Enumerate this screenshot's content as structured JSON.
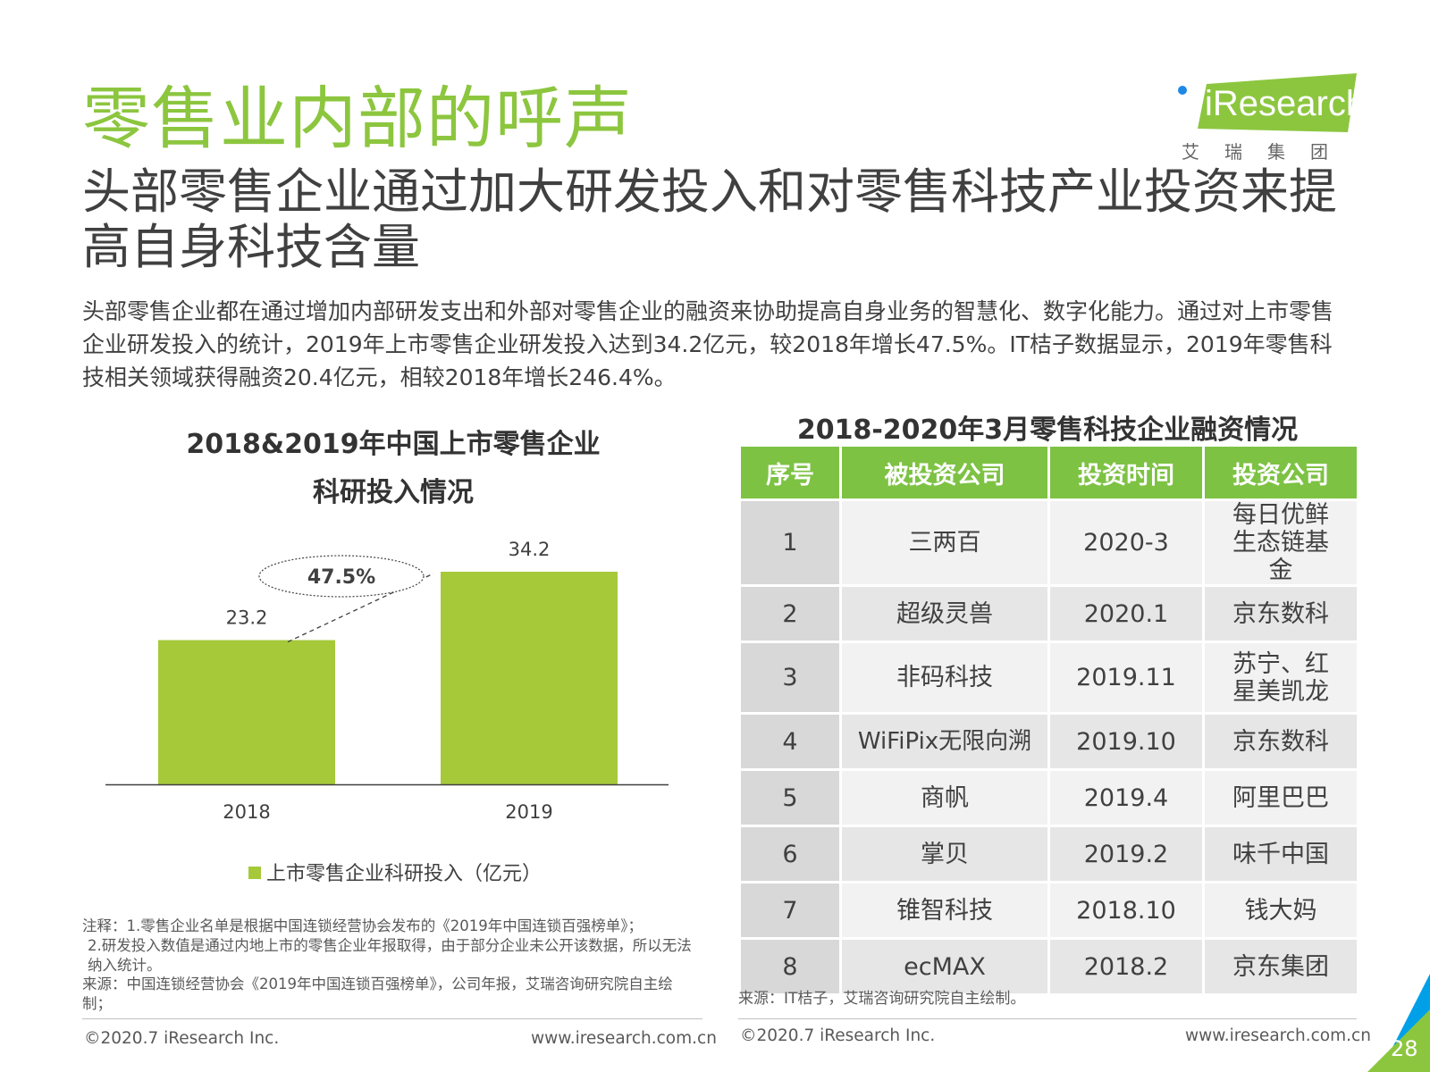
{
  "header": {
    "title": "零售业内部的呼声",
    "subtitle": "头部零售企业通过加大研发投入和对零售科技产业投资来提高自身科技含量",
    "summary": "头部零售企业都在通过增加内部研发支出和外部对零售企业的融资来协助提高自身业务的智慧化、数字化能力。通过对上市零售企业研发投入的统计，2019年上市零售企业研发投入达到34.2亿元，较2018年增长47.5%。IT桔子数据显示，2019年零售科技相关领域获得融资20.4亿元，相较2018年增长246.4%。"
  },
  "logo": {
    "text": "iResearch",
    "subtext": "艾瑞集团"
  },
  "chart_data": {
    "type": "bar",
    "title": "2018&2019年中国上市零售企业",
    "title_line2": "科研投入情况",
    "categories": [
      "2018",
      "2019"
    ],
    "series": [
      {
        "name": "上市零售企业科研投入（亿元）",
        "values": [
          23.2,
          34.2
        ]
      }
    ],
    "data_labels": [
      "23.2",
      "34.2"
    ],
    "annotation": "47.5%",
    "legend_position": "bottom",
    "bar_color": "#A6C93A"
  },
  "notes": {
    "line1": "注释：1.零售企业名单是根据中国连锁经营协会发布的《2019年中国连锁百强榜单》；",
    "line2": "2.研发投入数值是通过内地上市的零售企业年报取得，由于部分企业未公开该数据，所以无法纳入统计。",
    "source": "来源：中国连锁经营协会《2019年中国连锁百强榜单》，公司年报，艾瑞咨询研究院自主绘制；"
  },
  "table": {
    "title": "2018-2020年3月零售科技企业融资情况",
    "headers": [
      "序号",
      "被投资公司",
      "投资时间",
      "投资公司"
    ],
    "rows": [
      [
        "1",
        "三两百",
        "2020-3",
        "每日优鲜生态链基金"
      ],
      [
        "2",
        "超级灵兽",
        "2020.1",
        "京东数科"
      ],
      [
        "3",
        "非码科技",
        "2019.11",
        "苏宁、红星美凯龙"
      ],
      [
        "4",
        "WiFiPix无限向溯",
        "2019.10",
        "京东数科"
      ],
      [
        "5",
        "商帆",
        "2019.4",
        "阿里巴巴"
      ],
      [
        "6",
        "掌贝",
        "2019.2",
        "味千中国"
      ],
      [
        "7",
        "锥智科技",
        "2018.10",
        "钱大妈"
      ],
      [
        "8",
        "ecMAX",
        "2018.2",
        "京东集团"
      ]
    ],
    "source": "来源：IT桔子，艾瑞咨询研究院自主绘制。"
  },
  "footer": {
    "copyright": "©2020.7 iResearch Inc.",
    "url": "www.iresearch.com.cn",
    "page": "28"
  },
  "colors": {
    "title_green": "#8CC63F",
    "table_header": "#7DC243",
    "bar": "#A6C93A",
    "accent_blue": "#00A0E9"
  }
}
